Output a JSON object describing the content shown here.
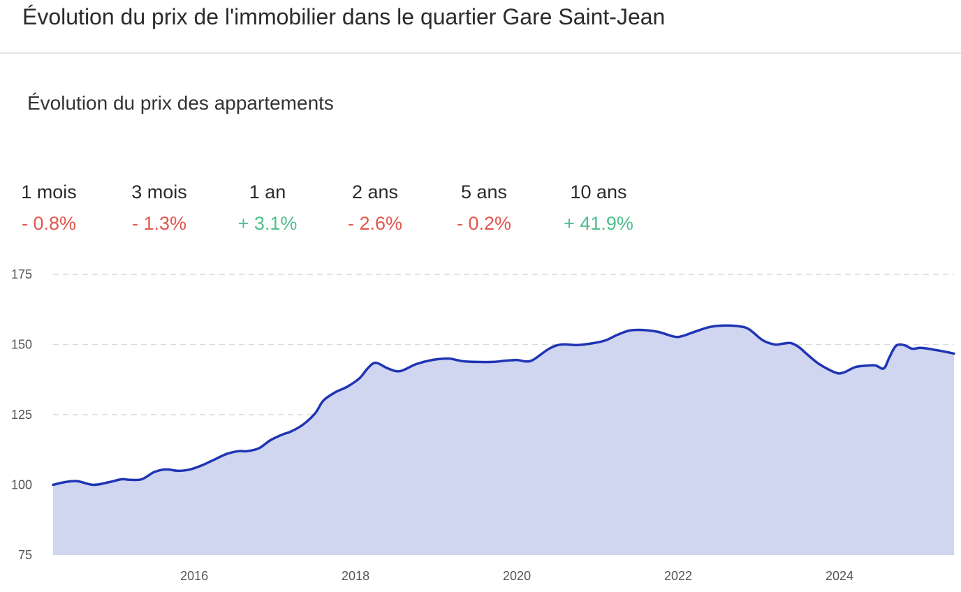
{
  "header": {
    "title": "Évolution du prix de l'immobilier dans le quartier Gare Saint-Jean"
  },
  "chart_title": "Évolution du prix des appartements",
  "stats": [
    {
      "label": "1 mois",
      "value": "- 0.8%",
      "trend": "negative"
    },
    {
      "label": "3 mois",
      "value": "- 1.3%",
      "trend": "negative"
    },
    {
      "label": "1 an",
      "value": "+ 3.1%",
      "trend": "positive"
    },
    {
      "label": "2 ans",
      "value": "- 2.6%",
      "trend": "negative"
    },
    {
      "label": "5 ans",
      "value": "- 0.2%",
      "trend": "negative"
    },
    {
      "label": "10 ans",
      "value": "+ 41.9%",
      "trend": "positive"
    }
  ],
  "colors": {
    "line": "#1f35b4",
    "fill": "#d0d5f0",
    "negative": "#e0574d",
    "positive": "#4fbf8d",
    "grid": "#d9d9d9"
  },
  "chart_data": {
    "type": "area",
    "title": "Évolution du prix des appartements",
    "xlabel": "",
    "ylabel": "",
    "xlim": [
      2014.25,
      2025.42
    ],
    "ylim": [
      75,
      175
    ],
    "yticks": [
      75,
      100,
      125,
      150,
      175
    ],
    "xticks": [
      2016,
      2018,
      2020,
      2022,
      2024
    ],
    "grid": true,
    "series": [
      {
        "x": [
          2014.25,
          2014.4,
          2014.55,
          2014.75,
          2014.95,
          2015.1,
          2015.2,
          2015.35,
          2015.5,
          2015.65,
          2015.8,
          2015.95,
          2016.1,
          2016.25,
          2016.4,
          2016.55,
          2016.65,
          2016.8,
          2016.95,
          2017.1,
          2017.2,
          2017.35,
          2017.5,
          2017.6,
          2017.75,
          2017.9,
          2018.05,
          2018.15,
          2018.25,
          2018.4,
          2018.55,
          2018.75,
          2018.95,
          2019.15,
          2019.25,
          2019.35,
          2019.5,
          2019.7,
          2019.85,
          2020.0,
          2020.1,
          2020.2,
          2020.4,
          2020.55,
          2020.75,
          2020.95,
          2021.1,
          2021.25,
          2021.4,
          2021.55,
          2021.75,
          2021.95,
          2022.05,
          2022.2,
          2022.4,
          2022.6,
          2022.8,
          2022.9,
          2023.05,
          2023.2,
          2023.3,
          2023.4,
          2023.5,
          2023.6,
          2023.75,
          2023.95,
          2024.05,
          2024.2,
          2024.35,
          2024.45,
          2024.55,
          2024.62,
          2024.7,
          2024.8,
          2024.9,
          2025.0,
          2025.1,
          2025.2,
          2025.3,
          2025.42
        ],
        "y": [
          100.0,
          101.0,
          101.3,
          100.0,
          101.0,
          102.0,
          101.8,
          102.0,
          104.5,
          105.5,
          105.0,
          105.5,
          107.0,
          109.0,
          111.0,
          112.0,
          112.0,
          113.0,
          116.0,
          118.0,
          119.0,
          121.5,
          125.5,
          130.0,
          133.0,
          135.0,
          138.0,
          141.5,
          143.5,
          141.5,
          140.5,
          143.0,
          144.5,
          145.0,
          144.5,
          144.0,
          143.8,
          143.8,
          144.2,
          144.5,
          144.0,
          144.5,
          148.5,
          150.0,
          149.8,
          150.5,
          151.5,
          153.5,
          155.0,
          155.2,
          154.5,
          152.8,
          153.0,
          154.5,
          156.3,
          156.8,
          156.3,
          155.0,
          151.5,
          150.0,
          150.3,
          150.5,
          149.0,
          146.5,
          143.0,
          140.0,
          140.0,
          142.0,
          142.5,
          142.5,
          141.5,
          145.5,
          149.5,
          149.8,
          148.5,
          148.8,
          148.5,
          148.0,
          147.5,
          146.8
        ]
      }
    ]
  }
}
